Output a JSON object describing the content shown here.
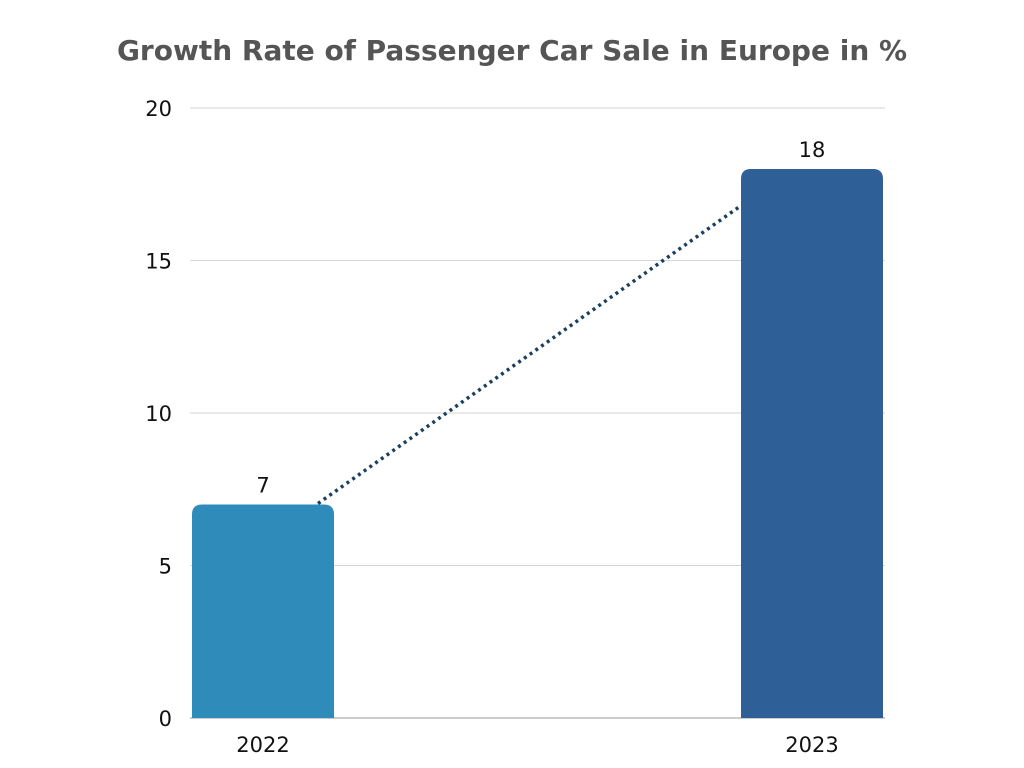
{
  "chart_data": {
    "type": "bar",
    "title": "Growth Rate of Passenger Car Sale in Europe in %",
    "xlabel": "",
    "ylabel": "",
    "categories": [
      "2022",
      "2023"
    ],
    "values": [
      7,
      18
    ],
    "data_labels": [
      "7",
      "18"
    ],
    "ylim": [
      0,
      20
    ],
    "yticks": [
      "0",
      "5",
      "10",
      "15",
      "20"
    ],
    "grid": true,
    "legend": "none",
    "colors": [
      "#2E8BBA",
      "#2F5F97"
    ],
    "connector": {
      "style": "dotted",
      "color": "#1B3F5E"
    }
  }
}
